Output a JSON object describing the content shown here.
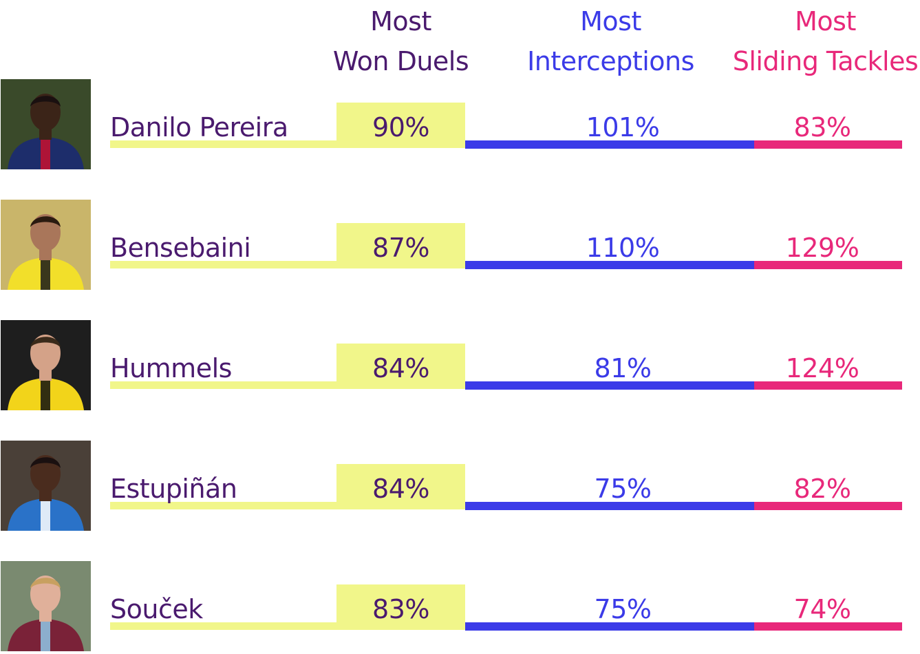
{
  "headers": {
    "won_duels": [
      "Most",
      "Won Duels"
    ],
    "interceptions": [
      "Most",
      "Interceptions"
    ],
    "sliding_tackles": [
      "Most",
      "Sliding Tackles"
    ]
  },
  "colors": {
    "duels": "#f1f68a",
    "interceptions": "#3b3be8",
    "sliding_tackles": "#e8287a",
    "text": "#4a1a6e"
  },
  "chart_data": {
    "type": "table",
    "columns": [
      "Most Won Duels",
      "Most Interceptions",
      "Most Sliding Tackles"
    ],
    "rows": [
      {
        "name": "Danilo Pereira",
        "won_duels": "90%",
        "interceptions": "101%",
        "sliding_tackles": "83%",
        "kit": "psg"
      },
      {
        "name": "Bensebaini",
        "won_duels": "87%",
        "interceptions": "110%",
        "sliding_tackles": "129%",
        "kit": "dortmund"
      },
      {
        "name": "Hummels",
        "won_duels": "84%",
        "interceptions": "81%",
        "sliding_tackles": "124%",
        "kit": "dortmund-dark"
      },
      {
        "name": "Estupiñán",
        "won_duels": "84%",
        "interceptions": "75%",
        "sliding_tackles": "82%",
        "kit": "brighton"
      },
      {
        "name": "Souček",
        "won_duels": "83%",
        "interceptions": "75%",
        "sliding_tackles": "74%",
        "kit": "westham"
      }
    ]
  }
}
